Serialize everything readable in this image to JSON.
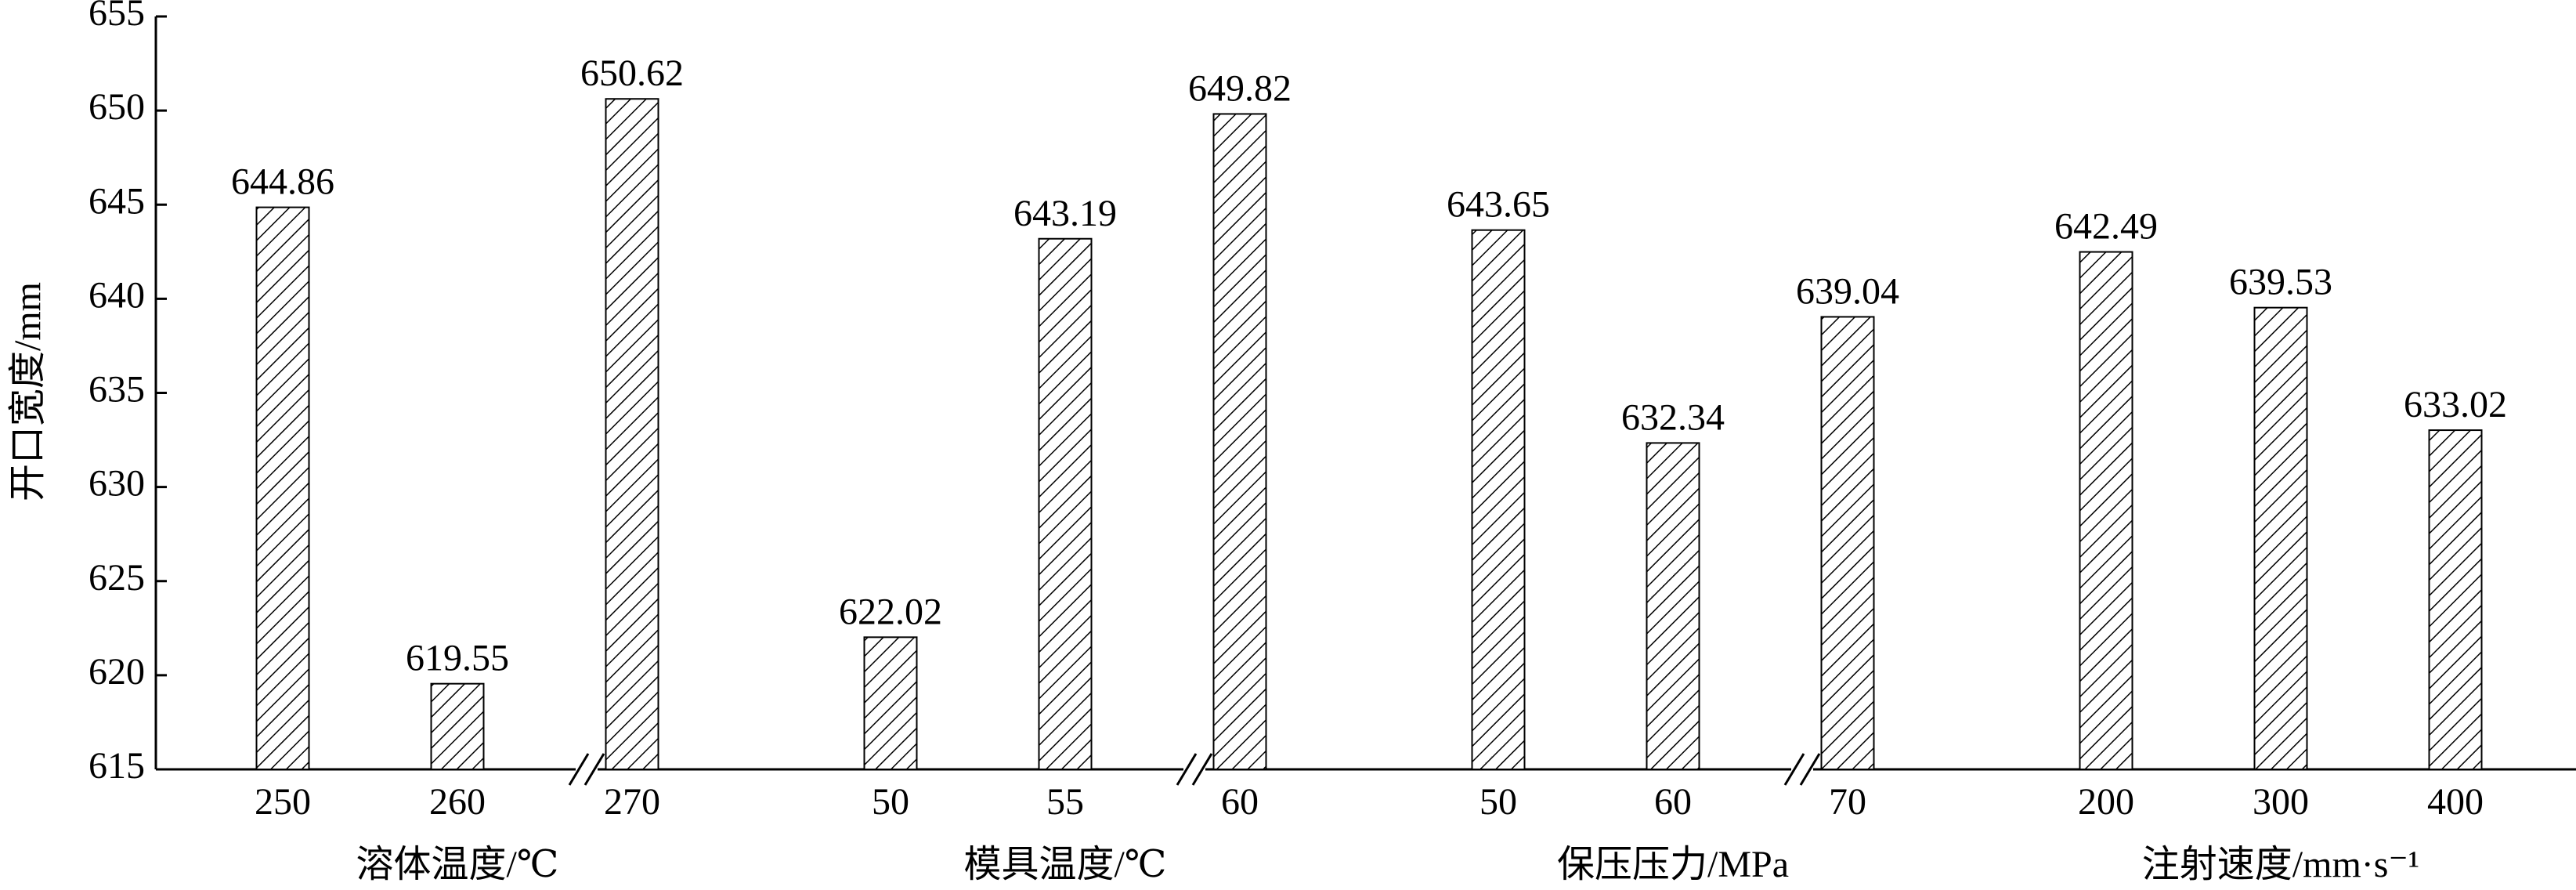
{
  "chart_data": {
    "type": "bar",
    "ylabel": "开口宽度/mm",
    "ylim": [
      615,
      655
    ],
    "yticks": [
      615,
      620,
      625,
      630,
      635,
      640,
      645,
      650,
      655
    ],
    "hatch": true,
    "color": "#000000",
    "groups": [
      {
        "label": "溶体温度/℃",
        "categories": [
          "250",
          "260",
          "270"
        ],
        "values": [
          644.86,
          619.55,
          650.62
        ]
      },
      {
        "label": "模具温度/℃",
        "categories": [
          "50",
          "55",
          "60"
        ],
        "values": [
          622.02,
          643.19,
          649.82
        ]
      },
      {
        "label": "保压压力/MPa",
        "categories": [
          "50",
          "60",
          "70"
        ],
        "values": [
          643.65,
          632.34,
          639.04
        ]
      },
      {
        "label": "注射速度/mm·s⁻¹",
        "categories": [
          "200",
          "300",
          "400"
        ],
        "values": [
          642.49,
          639.53,
          633.02
        ]
      }
    ]
  }
}
